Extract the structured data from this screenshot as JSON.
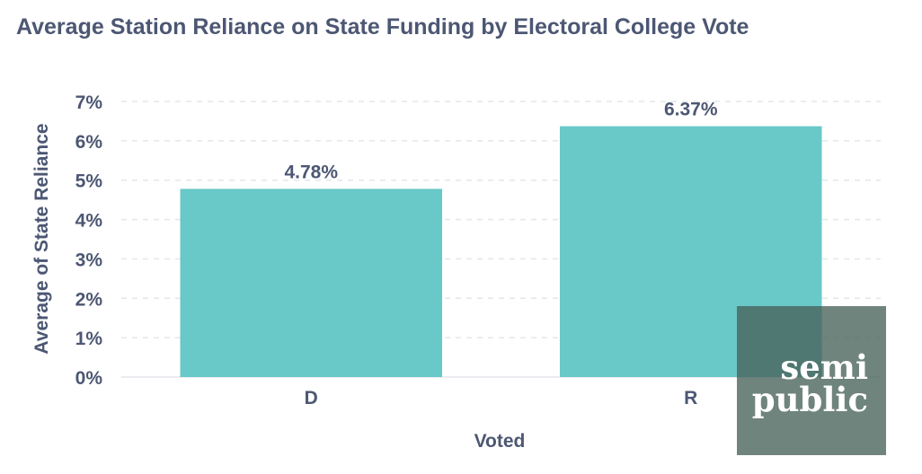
{
  "chart_data": {
    "type": "bar",
    "title": "Average Station Reliance on State Funding by Electoral College Vote",
    "xlabel": "Voted",
    "ylabel": "Average of State Reliance",
    "categories": [
      "D",
      "R"
    ],
    "values": [
      4.78,
      6.37
    ],
    "value_labels": [
      "4.78%",
      "6.37%"
    ],
    "ylim": [
      0,
      7
    ],
    "yticks": [
      0,
      1,
      2,
      3,
      4,
      5,
      6,
      7
    ],
    "ytick_labels": [
      "0%",
      "1%",
      "2%",
      "3%",
      "4%",
      "5%",
      "6%",
      "7%"
    ],
    "grid": true,
    "bar_color": "#69c8c8"
  },
  "logo": {
    "line1": "semi",
    "line2": "public"
  }
}
